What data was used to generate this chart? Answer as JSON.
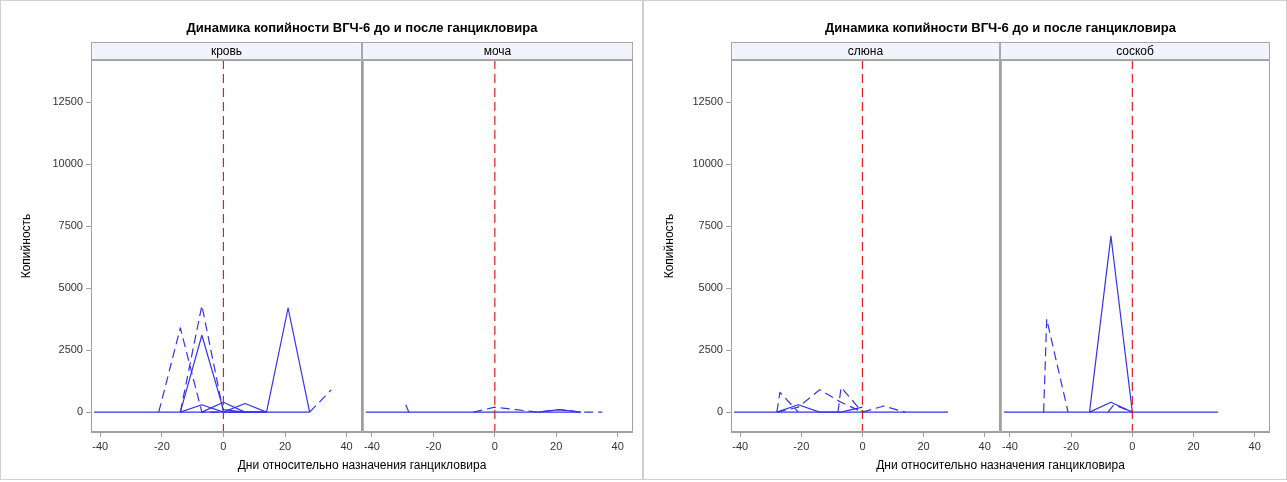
{
  "chart_data": [
    {
      "type": "line",
      "title": "Динамика копийности ВГЧ-6 до и после ганцикловира",
      "subtitle": "кровь",
      "xlabel": "Дни относительно назначения ганцикловира",
      "ylabel": "Копийность",
      "xlim": [
        -43,
        45
      ],
      "xticks": [
        -40,
        -20,
        0,
        20,
        40
      ],
      "ylim": [
        -800,
        14200
      ],
      "yticks": [
        0,
        2500,
        5000,
        7500,
        10000,
        12500
      ],
      "legend": false,
      "ref_lines": [
        {
          "axis": "x",
          "value": 0,
          "color": "#e02020",
          "line_style": "dashed"
        }
      ],
      "series": [
        {
          "color": "#3434e8",
          "line_style": "solid",
          "x": [
            -42,
            -35,
            -28,
            -21,
            -14,
            -7,
            0,
            7,
            14,
            21,
            28
          ],
          "values": [
            0,
            0,
            0,
            0,
            0,
            3100,
            100,
            0,
            0,
            0,
            0
          ]
        },
        {
          "color": "#3434e8",
          "line_style": "dashed",
          "x": [
            -21,
            -14,
            -7,
            0
          ],
          "values": [
            0,
            3400,
            0,
            0
          ]
        },
        {
          "color": "#3434e8",
          "line_style": "dashed",
          "x": [
            -14,
            -7,
            0,
            7
          ],
          "values": [
            0,
            4300,
            0,
            0
          ]
        },
        {
          "color": "#3434e8",
          "line_style": "solid",
          "x": [
            -14,
            -7,
            0,
            7,
            14,
            21,
            28
          ],
          "values": [
            0,
            0,
            0,
            0,
            0,
            4200,
            0
          ]
        },
        {
          "color": "#3434e8",
          "line_style": "dashed",
          "x": [
            28,
            35
          ],
          "values": [
            0,
            900
          ]
        },
        {
          "color": "#3434e8",
          "line_style": "solid",
          "x": [
            -14,
            -7,
            0,
            7,
            14
          ],
          "values": [
            0,
            300,
            0,
            0,
            0
          ]
        },
        {
          "color": "#3434e8",
          "line_style": "solid",
          "x": [
            -7,
            0,
            7,
            14
          ],
          "values": [
            0,
            400,
            0,
            0
          ]
        },
        {
          "color": "#3434e8",
          "line_style": "solid",
          "x": [
            0,
            7,
            14
          ],
          "values": [
            0,
            350,
            0
          ]
        }
      ]
    },
    {
      "type": "line",
      "subtitle": "моча",
      "xlim": [
        -43,
        45
      ],
      "xticks": [
        -40,
        -20,
        0,
        20,
        40
      ],
      "ylim": [
        -800,
        14200
      ],
      "yticks": [
        0,
        2500,
        5000,
        7500,
        10000,
        12500
      ],
      "tick_labels": "x",
      "legend": false,
      "ref_lines": [
        {
          "axis": "x",
          "value": 0,
          "color": "#e02020",
          "line_style": "dashed"
        }
      ],
      "series": [
        {
          "color": "#3434e8",
          "line_style": "solid",
          "x": [
            -42,
            -35,
            -28,
            -21,
            -14,
            -7,
            0,
            7,
            14,
            21,
            28
          ],
          "values": [
            0,
            0,
            0,
            0,
            0,
            0,
            0,
            0,
            0,
            0,
            0
          ]
        },
        {
          "color": "#3434e8",
          "line_style": "solid",
          "x": [
            -29,
            -28
          ],
          "values": [
            300,
            0
          ]
        },
        {
          "color": "#3434e8",
          "line_style": "dashed",
          "x": [
            -7,
            0,
            7,
            14,
            21,
            28,
            35
          ],
          "values": [
            0,
            200,
            100,
            0,
            100,
            0,
            0
          ]
        },
        {
          "color": "#3434e8",
          "line_style": "solid",
          "x": [
            14,
            21,
            28
          ],
          "values": [
            0,
            100,
            0
          ]
        }
      ]
    },
    {
      "type": "line",
      "title": "Динамика копийности ВГЧ-6 до и после ганцикловира",
      "subtitle": "слюна",
      "xlabel": "Дни относительно назначения ганцикловира",
      "ylabel": "Копийность",
      "xlim": [
        -43,
        45
      ],
      "xticks": [
        -40,
        -20,
        0,
        20,
        40
      ],
      "ylim": [
        -800,
        14200
      ],
      "yticks": [
        0,
        2500,
        5000,
        7500,
        10000,
        12500
      ],
      "legend": false,
      "ref_lines": [
        {
          "axis": "x",
          "value": 0,
          "color": "#e02020",
          "line_style": "dashed"
        }
      ],
      "series": [
        {
          "color": "#3434e8",
          "line_style": "solid",
          "x": [
            -42,
            -35,
            -28,
            -21,
            -14,
            -7,
            0,
            7,
            14,
            21,
            28
          ],
          "values": [
            0,
            0,
            0,
            0,
            0,
            0,
            0,
            0,
            0,
            0,
            0
          ]
        },
        {
          "color": "#3434e8",
          "line_style": "dashed",
          "x": [
            -28,
            -27,
            -21
          ],
          "values": [
            0,
            800,
            0
          ]
        },
        {
          "color": "#3434e8",
          "line_style": "dashed",
          "x": [
            -28,
            -21,
            -14,
            -7,
            0
          ],
          "values": [
            0,
            200,
            900,
            400,
            0
          ]
        },
        {
          "color": "#3434e8",
          "line_style": "dashed",
          "x": [
            -8,
            -7,
            0
          ],
          "values": [
            0,
            1000,
            0
          ]
        },
        {
          "color": "#3434e8",
          "line_style": "dashed",
          "x": [
            0,
            7,
            14
          ],
          "values": [
            0,
            250,
            0
          ]
        },
        {
          "color": "#3434e8",
          "line_style": "solid",
          "x": [
            -28,
            -21,
            -14,
            -7,
            0
          ],
          "values": [
            0,
            300,
            0,
            0,
            200
          ]
        }
      ]
    },
    {
      "type": "line",
      "subtitle": "соскоб",
      "xlim": [
        -43,
        45
      ],
      "xticks": [
        -40,
        -20,
        0,
        20,
        40
      ],
      "ylim": [
        -800,
        14200
      ],
      "yticks": [
        0,
        2500,
        5000,
        7500,
        10000,
        12500
      ],
      "tick_labels": "x",
      "legend": false,
      "ref_lines": [
        {
          "axis": "x",
          "value": 0,
          "color": "#e02020",
          "line_style": "dashed"
        }
      ],
      "series": [
        {
          "color": "#3434e8",
          "line_style": "solid",
          "x": [
            -42,
            -35,
            -28,
            -21,
            -14,
            -7,
            0,
            7,
            14,
            21,
            28
          ],
          "values": [
            0,
            0,
            0,
            0,
            0,
            0,
            0,
            0,
            0,
            0,
            0
          ]
        },
        {
          "color": "#3434e8",
          "line_style": "dashed",
          "x": [
            -29,
            -28,
            -21
          ],
          "values": [
            0,
            3750,
            0
          ]
        },
        {
          "color": "#3434e8",
          "line_style": "solid",
          "x": [
            -14,
            -7,
            0
          ],
          "values": [
            0,
            7100,
            0
          ]
        },
        {
          "color": "#3434e8",
          "line_style": "solid",
          "x": [
            -14,
            -7,
            0
          ],
          "values": [
            0,
            400,
            0
          ]
        },
        {
          "color": "#3434e8",
          "line_style": "dashed",
          "x": [
            -8,
            -6,
            0
          ],
          "values": [
            0,
            300,
            0
          ]
        }
      ]
    }
  ]
}
